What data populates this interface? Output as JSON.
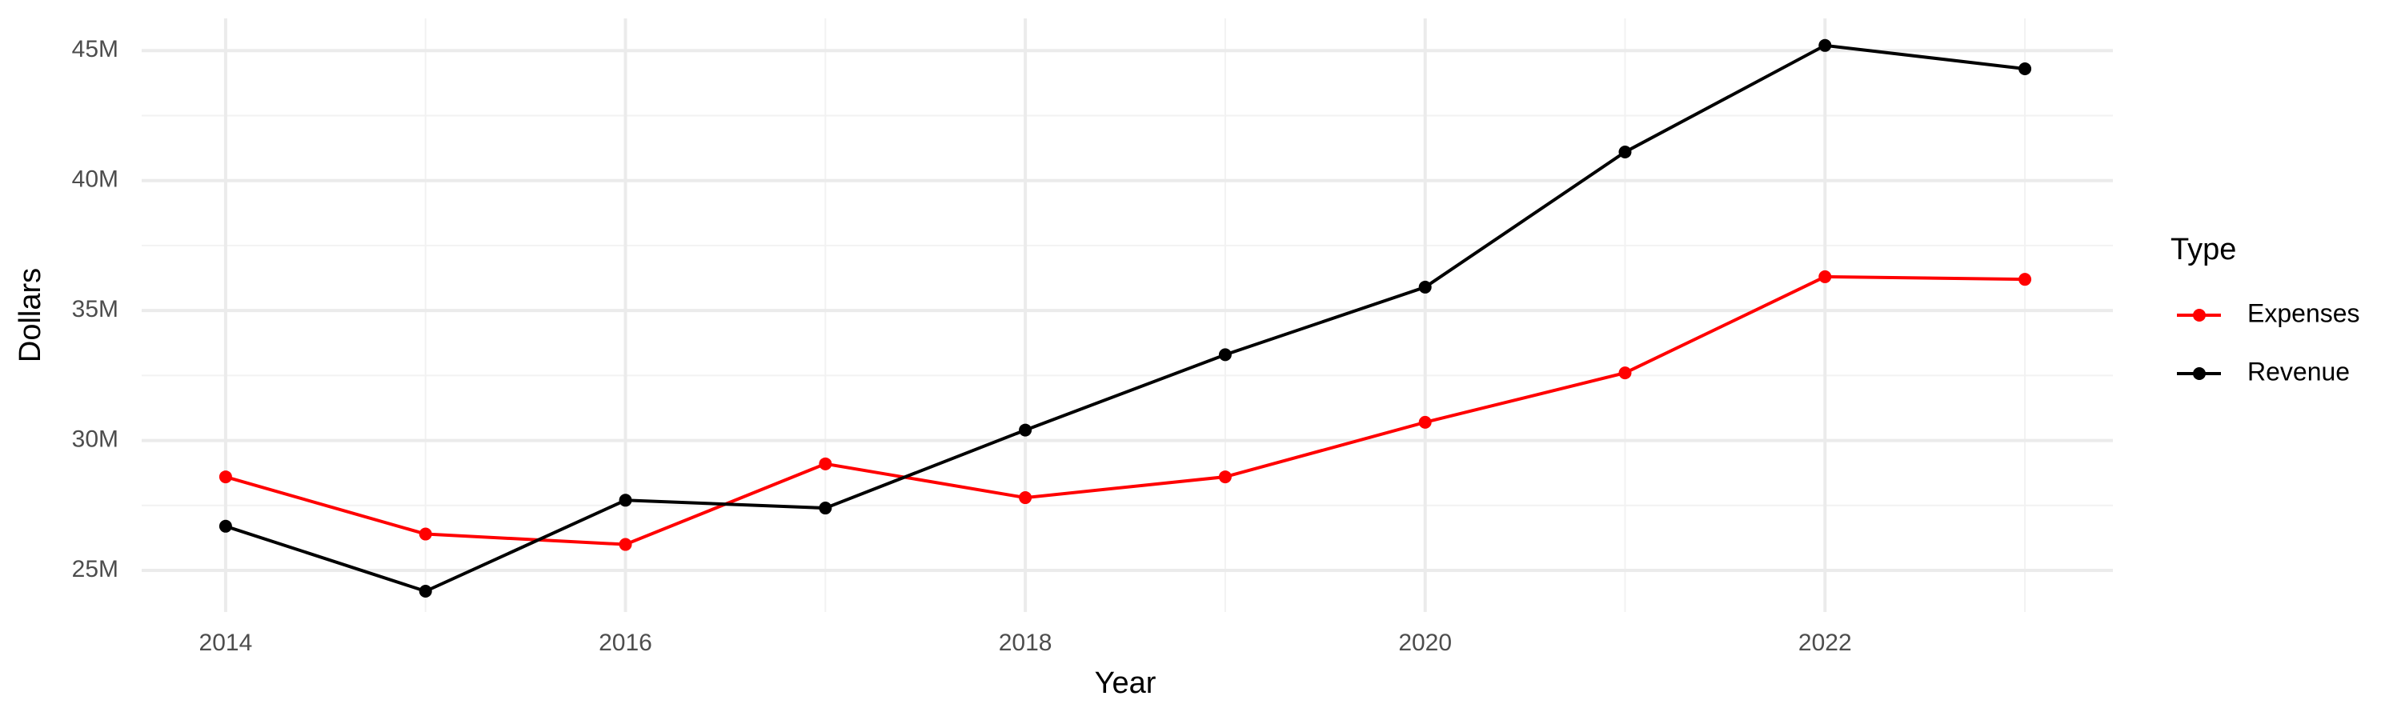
{
  "chart_data": {
    "type": "line",
    "x_label": "Year",
    "y_label": "Dollars",
    "legend_title": "Type",
    "x": [
      2014,
      2015,
      2016,
      2017,
      2018,
      2019,
      2020,
      2021,
      2022,
      2023
    ],
    "series": [
      {
        "name": "Expenses",
        "color": "#ff0000",
        "values": [
          28600000,
          26400000,
          26000000,
          29100000,
          27800000,
          28600000,
          30700000,
          32600000,
          36300000,
          36200000
        ]
      },
      {
        "name": "Revenue",
        "color": "#000000",
        "values": [
          26700000,
          24200000,
          27700000,
          27400000,
          30400000,
          33300000,
          35900000,
          41100000,
          45200000,
          44300000
        ]
      }
    ],
    "xlim": [
      2013.58,
      2023.44
    ],
    "xticks": [
      2014,
      2016,
      2018,
      2020,
      2022
    ],
    "ylim": [
      23400000,
      46240000
    ],
    "yticks": [
      {
        "value": 25000000,
        "label": "25M"
      },
      {
        "value": 30000000,
        "label": "30M"
      },
      {
        "value": 35000000,
        "label": "35M"
      },
      {
        "value": 40000000,
        "label": "40M"
      },
      {
        "value": 45000000,
        "label": "45M"
      }
    ],
    "grid": true,
    "legend": "right"
  }
}
